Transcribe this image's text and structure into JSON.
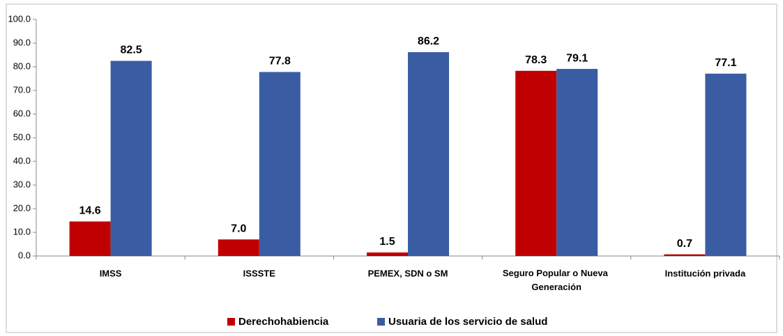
{
  "chart_data": {
    "type": "bar",
    "categories": [
      "IMSS",
      "ISSSTE",
      "PEMEX, SDN o SM",
      "Seguro Popular o Nueva Generación",
      "Institución privada"
    ],
    "series": [
      {
        "name": "Derechohabiencia",
        "color": "#c00000",
        "values": [
          14.6,
          7.0,
          1.5,
          78.3,
          0.7
        ],
        "value_labels": [
          "14.6",
          "7.0",
          "1.5",
          "78.3",
          "0.7"
        ]
      },
      {
        "name": "Usuaria de los servicio de salud",
        "color": "#3a5ca3",
        "values": [
          82.5,
          77.8,
          86.2,
          79.1,
          77.1
        ],
        "value_labels": [
          "82.5",
          "77.8",
          "86.2",
          "79.1",
          "77.1"
        ]
      }
    ],
    "ylim": [
      0,
      100
    ],
    "yticks": [
      {
        "value": 0,
        "label": "0.0"
      },
      {
        "value": 10,
        "label": "10.0"
      },
      {
        "value": 20,
        "label": "20.0"
      },
      {
        "value": 30,
        "label": "30.0"
      },
      {
        "value": 40,
        "label": "40.0"
      },
      {
        "value": 50,
        "label": "50.0"
      },
      {
        "value": 60,
        "label": "60.0"
      },
      {
        "value": 70,
        "label": "70.0"
      },
      {
        "value": 80,
        "label": "80.0"
      },
      {
        "value": 90,
        "label": "90.0"
      },
      {
        "value": 100,
        "label": "100.0"
      }
    ],
    "grid": false,
    "legend": "bottom"
  }
}
